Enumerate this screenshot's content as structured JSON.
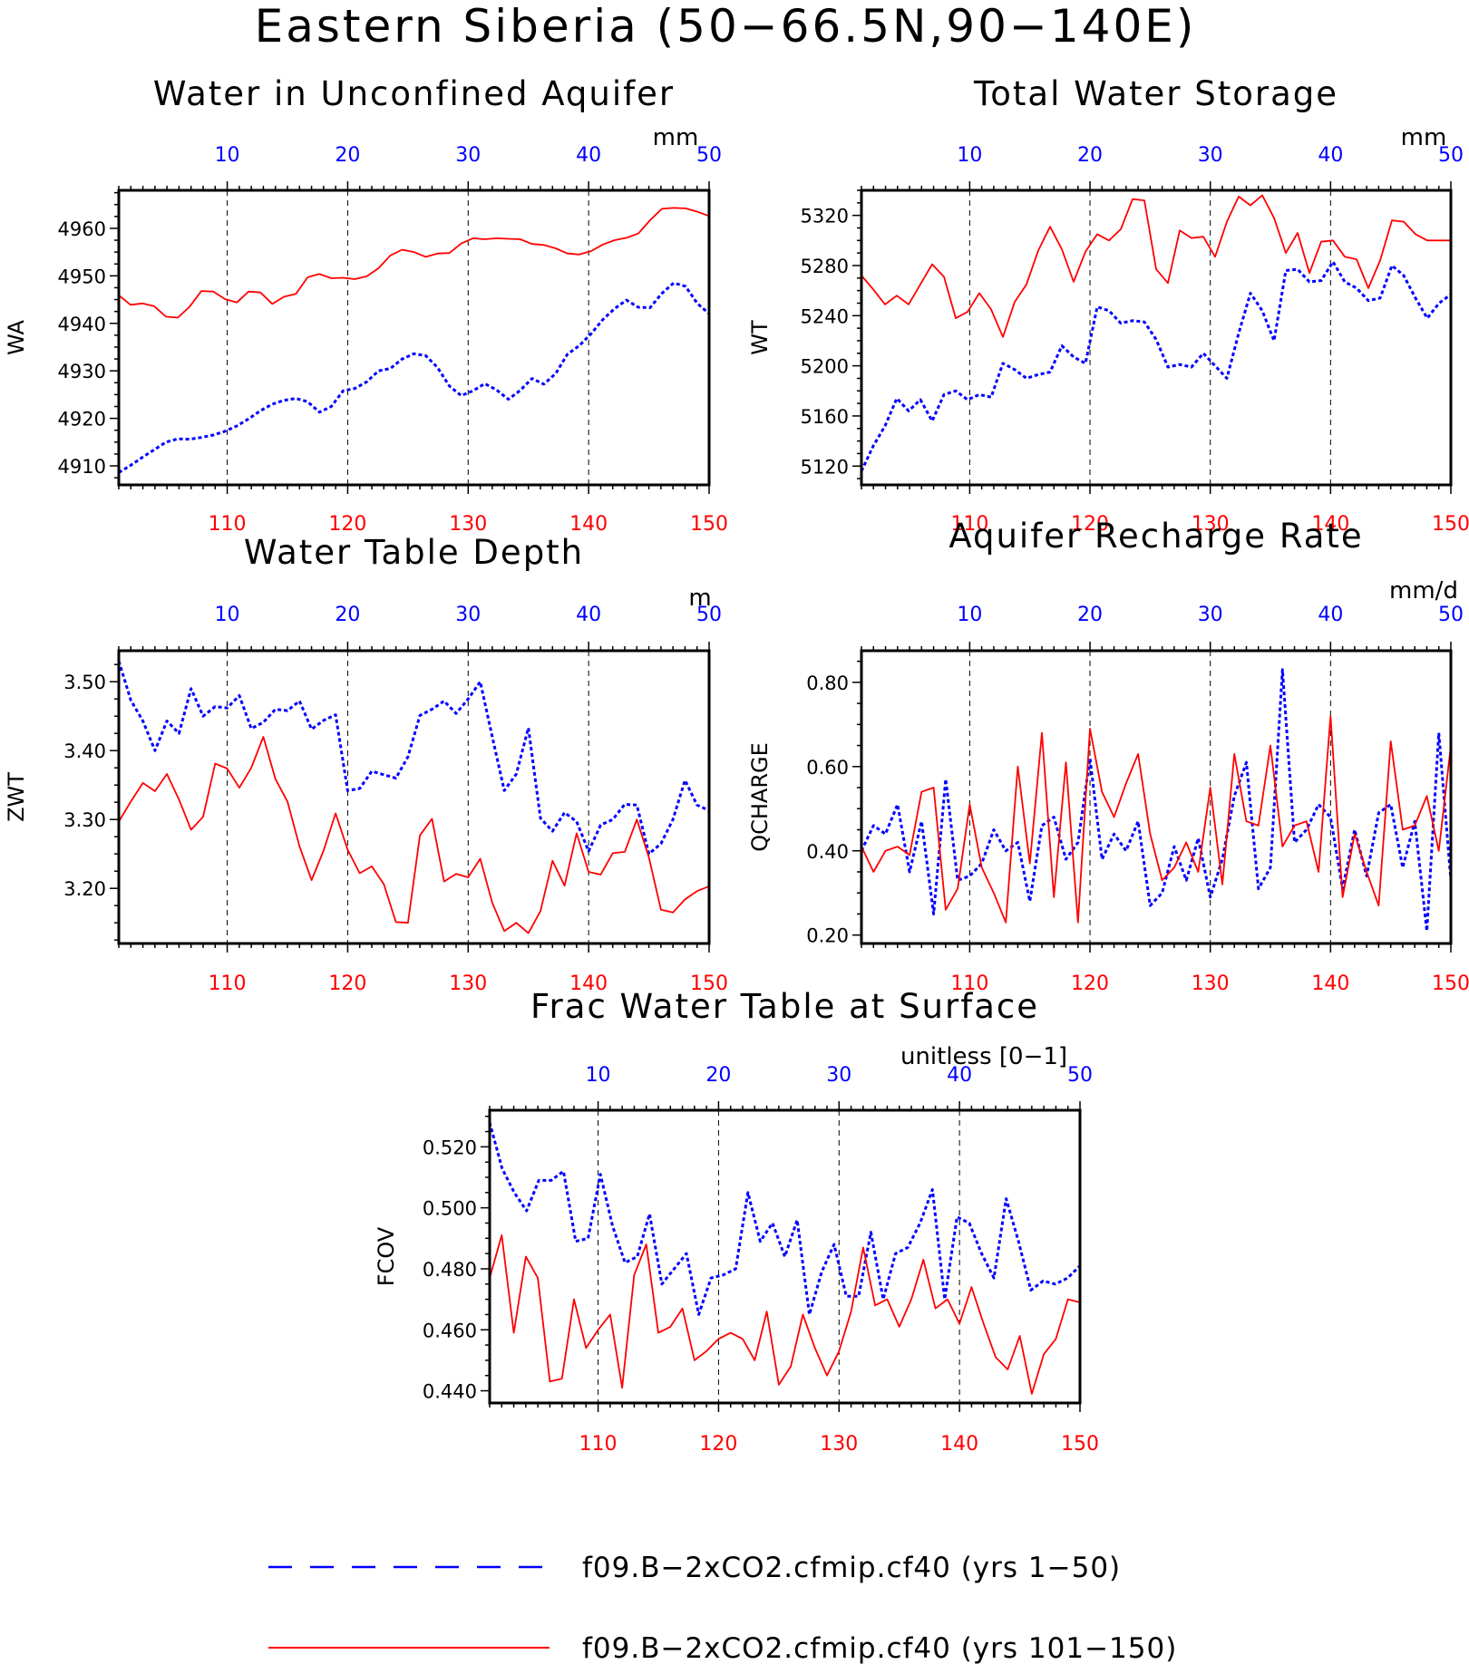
{
  "title": "Eastern Siberia (50−66.5N,90−140E)",
  "legend": [
    {
      "label": "f09.B−2xCO2.cfmip.cf40 (yrs 1−50)",
      "color": "#0000ff",
      "style": "dashed"
    },
    {
      "label": "f09.B−2xCO2.cfmip.cf40 (yrs 101−150)",
      "color": "#ff0000",
      "style": "solid"
    }
  ],
  "colors": {
    "series1": "#0000ff",
    "series2": "#ff0000"
  },
  "chart_data": [
    {
      "type": "line",
      "title": "Water in Unconfined Aquifer",
      "ylabel": "WA",
      "units": "mm",
      "ylim": [
        4906,
        4968
      ],
      "yticks": [
        4910,
        4920,
        4930,
        4940,
        4950,
        4960
      ],
      "ytick_labels": [
        "4910",
        "4920",
        "4930",
        "4940",
        "4950",
        "4960"
      ],
      "x_top": [
        10,
        20,
        30,
        40,
        50
      ],
      "x_bottom": [
        110,
        120,
        130,
        140,
        150
      ],
      "series": [
        {
          "values": [
            4908.6,
            4910.1,
            4911.8,
            4913.4,
            4915.0,
            4915.7,
            4915.6,
            4916.0,
            4916.5,
            4917.3,
            4918.4,
            4919.9,
            4921.6,
            4923.0,
            4923.8,
            4924.2,
            4923.5,
            4921.3,
            4922.5,
            4925.8,
            4926.3,
            4927.7,
            4930.0,
            4930.5,
            4932.5,
            4933.6,
            4933.2,
            4930.7,
            4926.8,
            4924.8,
            4925.8,
            4927.3,
            4926.0,
            4924.0,
            4925.9,
            4928.4,
            4927.2,
            4929.4,
            4933.5,
            4935.3,
            4937.8,
            4940.8,
            4943.1,
            4944.9,
            4943.4,
            4943.3,
            4946.3,
            4948.5,
            4947.8,
            4944.2,
            4942.0
          ]
        },
        {
          "values": [
            4945.9,
            4943.9,
            4944.2,
            4943.6,
            4941.4,
            4941.2,
            4943.5,
            4946.8,
            4946.7,
            4945.1,
            4944.4,
            4946.7,
            4946.5,
            4944.1,
            4945.6,
            4946.2,
            4949.7,
            4950.4,
            4949.5,
            4949.6,
            4949.3,
            4949.9,
            4951.6,
            4954.3,
            4955.5,
            4955.0,
            4954.0,
            4954.7,
            4954.8,
            4956.8,
            4957.9,
            4957.7,
            4957.9,
            4957.8,
            4957.7,
            4956.7,
            4956.5,
            4955.8,
            4954.7,
            4954.5,
            4955.2,
            4956.6,
            4957.5,
            4958.0,
            4958.9,
            4961.7,
            4964.1,
            4964.3,
            4964.2,
            4963.5,
            4962.6
          ]
        }
      ]
    },
    {
      "type": "line",
      "title": "Total Water Storage",
      "ylabel": "WT",
      "units": "mm",
      "ylim": [
        5105,
        5340
      ],
      "yticks": [
        5120,
        5160,
        5200,
        5240,
        5280,
        5320
      ],
      "ytick_labels": [
        "5120",
        "5160",
        "5200",
        "5240",
        "5280",
        "5320"
      ],
      "x_top": [
        10,
        20,
        30,
        40,
        50
      ],
      "x_bottom": [
        110,
        120,
        130,
        140,
        150
      ],
      "series": [
        {
          "values": [
            5116,
            5136,
            5152,
            5174,
            5164,
            5173,
            5156,
            5177,
            5180,
            5173,
            5177,
            5175,
            5202,
            5197,
            5190,
            5193,
            5195,
            5216,
            5207,
            5202,
            5247,
            5244,
            5234,
            5236,
            5235,
            5221,
            5199,
            5201,
            5199,
            5210,
            5200,
            5190,
            5226,
            5258,
            5244,
            5220,
            5276,
            5277,
            5267,
            5268,
            5283,
            5267,
            5262,
            5252,
            5254,
            5280,
            5272,
            5254,
            5238,
            5250,
            5257
          ]
        },
        {
          "values": [
            5272,
            5261,
            5249,
            5256,
            5249,
            5265,
            5281,
            5271,
            5238,
            5243,
            5258,
            5245,
            5223,
            5251,
            5265,
            5292,
            5311,
            5293,
            5267,
            5291,
            5305,
            5300,
            5309,
            5333,
            5332,
            5277,
            5266,
            5308,
            5302,
            5303,
            5287,
            5315,
            5335,
            5328,
            5336,
            5318,
            5290,
            5306,
            5274,
            5299,
            5300,
            5287,
            5285,
            5262,
            5284,
            5316,
            5315,
            5305,
            5300,
            5300,
            5300
          ]
        }
      ]
    },
    {
      "type": "line",
      "title": "Water Table Depth",
      "ylabel": "ZWT",
      "units": "m",
      "ylim": [
        3.12,
        3.545
      ],
      "yticks": [
        3.2,
        3.3,
        3.4,
        3.5
      ],
      "ytick_labels": [
        "3.20",
        "3.30",
        "3.40",
        "3.50"
      ],
      "x_top": [
        10,
        20,
        30,
        40,
        50
      ],
      "x_bottom": [
        110,
        120,
        130,
        140,
        150
      ],
      "series": [
        {
          "values": [
            3.53,
            3.473,
            3.443,
            3.4,
            3.443,
            3.425,
            3.49,
            3.45,
            3.464,
            3.462,
            3.48,
            3.432,
            3.441,
            3.46,
            3.458,
            3.472,
            3.431,
            3.444,
            3.452,
            3.342,
            3.345,
            3.37,
            3.365,
            3.36,
            3.391,
            3.451,
            3.46,
            3.472,
            3.454,
            3.475,
            3.5,
            3.42,
            3.342,
            3.366,
            3.433,
            3.302,
            3.283,
            3.31,
            3.297,
            3.254,
            3.292,
            3.3,
            3.322,
            3.321,
            3.25,
            3.265,
            3.3,
            3.357,
            3.321,
            3.313
          ]
        },
        {
          "values": [
            3.297,
            3.326,
            3.353,
            3.341,
            3.366,
            3.329,
            3.285,
            3.304,
            3.381,
            3.374,
            3.346,
            3.375,
            3.42,
            3.359,
            3.326,
            3.261,
            3.212,
            3.255,
            3.309,
            3.256,
            3.222,
            3.232,
            3.206,
            3.151,
            3.15,
            3.277,
            3.301,
            3.21,
            3.221,
            3.216,
            3.243,
            3.179,
            3.138,
            3.15,
            3.135,
            3.167,
            3.24,
            3.204,
            3.28,
            3.224,
            3.22,
            3.251,
            3.253,
            3.3,
            3.245,
            3.169,
            3.165,
            3.184,
            3.196,
            3.203
          ]
        }
      ]
    },
    {
      "type": "line",
      "title": "Aquifer Recharge Rate",
      "ylabel": "QCHARGE",
      "units": "mm/d",
      "ylim": [
        0.18,
        0.875
      ],
      "yticks": [
        0.2,
        0.4,
        0.6,
        0.8
      ],
      "ytick_labels": [
        "0.20",
        "0.40",
        "0.60",
        "0.80"
      ],
      "x_top": [
        10,
        20,
        30,
        40,
        50
      ],
      "x_bottom": [
        110,
        120,
        130,
        140,
        150
      ],
      "series": [
        {
          "values": [
            0.4,
            0.46,
            0.44,
            0.51,
            0.35,
            0.47,
            0.25,
            0.57,
            0.33,
            0.34,
            0.37,
            0.45,
            0.4,
            0.42,
            0.28,
            0.46,
            0.48,
            0.38,
            0.42,
            0.62,
            0.38,
            0.44,
            0.4,
            0.47,
            0.27,
            0.3,
            0.41,
            0.33,
            0.43,
            0.29,
            0.38,
            0.53,
            0.61,
            0.31,
            0.36,
            0.83,
            0.42,
            0.45,
            0.51,
            0.48,
            0.31,
            0.45,
            0.34,
            0.49,
            0.51,
            0.36,
            0.47,
            0.21,
            0.68,
            0.33
          ]
        },
        {
          "values": [
            0.41,
            0.35,
            0.4,
            0.41,
            0.39,
            0.54,
            0.55,
            0.26,
            0.31,
            0.51,
            0.36,
            0.3,
            0.23,
            0.6,
            0.37,
            0.68,
            0.29,
            0.61,
            0.23,
            0.69,
            0.54,
            0.48,
            0.56,
            0.63,
            0.44,
            0.33,
            0.36,
            0.42,
            0.35,
            0.55,
            0.32,
            0.63,
            0.47,
            0.46,
            0.65,
            0.41,
            0.46,
            0.47,
            0.35,
            0.72,
            0.29,
            0.44,
            0.35,
            0.27,
            0.66,
            0.45,
            0.46,
            0.53,
            0.4,
            0.65
          ]
        }
      ]
    },
    {
      "type": "line",
      "title": "Frac Water Table at Surface",
      "ylabel": "FCOV",
      "units": "unitless [0−1]",
      "ylim": [
        0.436,
        0.532
      ],
      "yticks": [
        0.44,
        0.46,
        0.48,
        0.5,
        0.52
      ],
      "ytick_labels": [
        "0.440",
        "0.460",
        "0.480",
        "0.500",
        "0.520"
      ],
      "x_top": [
        10,
        20,
        30,
        40,
        50
      ],
      "x_bottom": [
        110,
        120,
        130,
        140,
        150
      ],
      "series": [
        {
          "values": [
            0.528,
            0.513,
            0.505,
            0.499,
            0.509,
            0.509,
            0.512,
            0.489,
            0.49,
            0.511,
            0.494,
            0.482,
            0.484,
            0.498,
            0.475,
            0.48,
            0.485,
            0.465,
            0.477,
            0.478,
            0.48,
            0.505,
            0.489,
            0.495,
            0.484,
            0.496,
            0.465,
            0.479,
            0.488,
            0.471,
            0.471,
            0.492,
            0.47,
            0.485,
            0.487,
            0.495,
            0.506,
            0.47,
            0.497,
            0.495,
            0.485,
            0.477,
            0.503,
            0.489,
            0.473,
            0.476,
            0.475,
            0.477,
            0.481
          ]
        },
        {
          "values": [
            0.477,
            0.491,
            0.459,
            0.484,
            0.477,
            0.443,
            0.444,
            0.47,
            0.454,
            0.46,
            0.465,
            0.441,
            0.478,
            0.488,
            0.459,
            0.461,
            0.467,
            0.45,
            0.453,
            0.457,
            0.459,
            0.457,
            0.45,
            0.466,
            0.442,
            0.448,
            0.465,
            0.454,
            0.445,
            0.453,
            0.466,
            0.487,
            0.468,
            0.47,
            0.461,
            0.47,
            0.483,
            0.467,
            0.47,
            0.462,
            0.474,
            0.462,
            0.451,
            0.447,
            0.458,
            0.439,
            0.452,
            0.457,
            0.47,
            0.469
          ]
        }
      ]
    }
  ]
}
